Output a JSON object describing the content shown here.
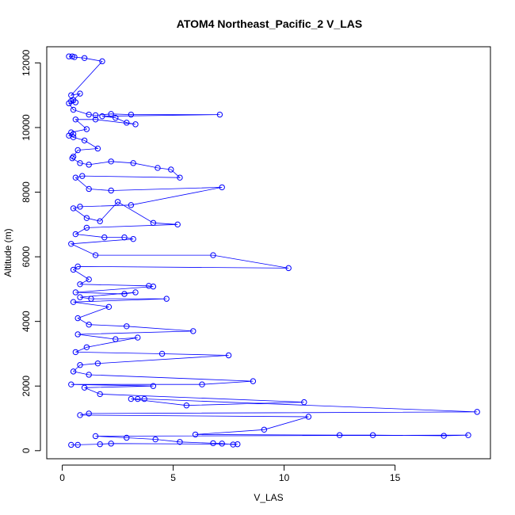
{
  "chart_data": {
    "type": "line",
    "title": "ATOM4 Northeast_Pacific_2 V_LAS",
    "xlabel": "V_LAS",
    "ylabel": "Altitude (m)",
    "xlim": [
      -0.7,
      19.3
    ],
    "ylim": [
      -250,
      12500
    ],
    "xticks": [
      0,
      5,
      10,
      15
    ],
    "yticks": [
      0,
      2000,
      4000,
      6000,
      8000,
      10000,
      12000
    ],
    "grid": false,
    "markers": "open-circle",
    "series": [
      {
        "color": "#0000ff",
        "points": [
          [
            0.3,
            12200
          ],
          [
            0.45,
            12200
          ],
          [
            0.55,
            12180
          ],
          [
            1.0,
            12150
          ],
          [
            1.8,
            12050
          ],
          [
            0.4,
            11000
          ],
          [
            0.8,
            11050
          ],
          [
            0.5,
            10850
          ],
          [
            0.4,
            10820
          ],
          [
            0.6,
            10780
          ],
          [
            0.3,
            10750
          ],
          [
            0.5,
            10550
          ],
          [
            1.2,
            10400
          ],
          [
            1.5,
            10380
          ],
          [
            2.2,
            10420
          ],
          [
            3.1,
            10400
          ],
          [
            7.1,
            10400
          ],
          [
            1.8,
            10350
          ],
          [
            2.4,
            10300
          ],
          [
            2.9,
            10150
          ],
          [
            3.3,
            10100
          ],
          [
            1.5,
            10250
          ],
          [
            0.6,
            10250
          ],
          [
            1.1,
            9950
          ],
          [
            0.4,
            9850
          ],
          [
            0.5,
            9800
          ],
          [
            0.3,
            9750
          ],
          [
            0.5,
            9700
          ],
          [
            1.0,
            9600
          ],
          [
            1.6,
            9350
          ],
          [
            0.7,
            9300
          ],
          [
            0.5,
            9100
          ],
          [
            0.45,
            9050
          ],
          [
            0.8,
            8900
          ],
          [
            1.2,
            8850
          ],
          [
            2.2,
            8950
          ],
          [
            3.2,
            8900
          ],
          [
            4.3,
            8750
          ],
          [
            4.9,
            8700
          ],
          [
            5.3,
            8450
          ],
          [
            0.9,
            8500
          ],
          [
            0.6,
            8450
          ],
          [
            1.2,
            8100
          ],
          [
            2.2,
            8050
          ],
          [
            7.2,
            8150
          ],
          [
            3.1,
            7600
          ],
          [
            0.8,
            7550
          ],
          [
            0.5,
            7500
          ],
          [
            1.1,
            7200
          ],
          [
            1.7,
            7100
          ],
          [
            2.5,
            7700
          ],
          [
            4.1,
            7050
          ],
          [
            5.2,
            7000
          ],
          [
            1.1,
            6900
          ],
          [
            0.6,
            6700
          ],
          [
            1.9,
            6600
          ],
          [
            2.8,
            6600
          ],
          [
            3.2,
            6550
          ],
          [
            0.4,
            6400
          ],
          [
            1.5,
            6050
          ],
          [
            6.8,
            6050
          ],
          [
            10.2,
            5650
          ],
          [
            0.7,
            5700
          ],
          [
            0.5,
            5600
          ],
          [
            1.2,
            5300
          ],
          [
            0.8,
            5150
          ],
          [
            3.9,
            5100
          ],
          [
            4.1,
            5080
          ],
          [
            0.6,
            4900
          ],
          [
            2.8,
            4850
          ],
          [
            3.3,
            4900
          ],
          [
            0.8,
            4750
          ],
          [
            1.3,
            4700
          ],
          [
            4.7,
            4700
          ],
          [
            0.5,
            4600
          ],
          [
            2.1,
            4450
          ],
          [
            0.7,
            4100
          ],
          [
            1.2,
            3900
          ],
          [
            2.9,
            3850
          ],
          [
            5.9,
            3700
          ],
          [
            0.7,
            3600
          ],
          [
            2.4,
            3450
          ],
          [
            3.4,
            3500
          ],
          [
            1.1,
            3200
          ],
          [
            0.6,
            3050
          ],
          [
            4.5,
            3000
          ],
          [
            7.5,
            2950
          ],
          [
            1.6,
            2700
          ],
          [
            0.8,
            2650
          ],
          [
            0.5,
            2450
          ],
          [
            1.2,
            2350
          ],
          [
            8.6,
            2150
          ],
          [
            6.3,
            2050
          ],
          [
            0.4,
            2050
          ],
          [
            4.1,
            2000
          ],
          [
            1.0,
            1950
          ],
          [
            1.7,
            1750
          ],
          [
            10.9,
            1500
          ],
          [
            5.6,
            1400
          ],
          [
            3.1,
            1600
          ],
          [
            3.4,
            1600
          ],
          [
            3.7,
            1600
          ],
          [
            18.7,
            1200
          ],
          [
            1.2,
            1150
          ],
          [
            0.8,
            1100
          ],
          [
            11.1,
            1050
          ],
          [
            9.1,
            650
          ],
          [
            6.0,
            500
          ],
          [
            12.5,
            480
          ],
          [
            14.0,
            480
          ],
          [
            17.2,
            460
          ],
          [
            18.3,
            480
          ],
          [
            1.5,
            450
          ],
          [
            2.9,
            400
          ],
          [
            4.2,
            350
          ],
          [
            5.3,
            270
          ],
          [
            6.8,
            230
          ],
          [
            7.2,
            220
          ],
          [
            7.7,
            190
          ],
          [
            7.9,
            200
          ],
          [
            2.2,
            220
          ],
          [
            1.7,
            200
          ],
          [
            0.4,
            180
          ],
          [
            0.7,
            180
          ]
        ]
      }
    ]
  }
}
